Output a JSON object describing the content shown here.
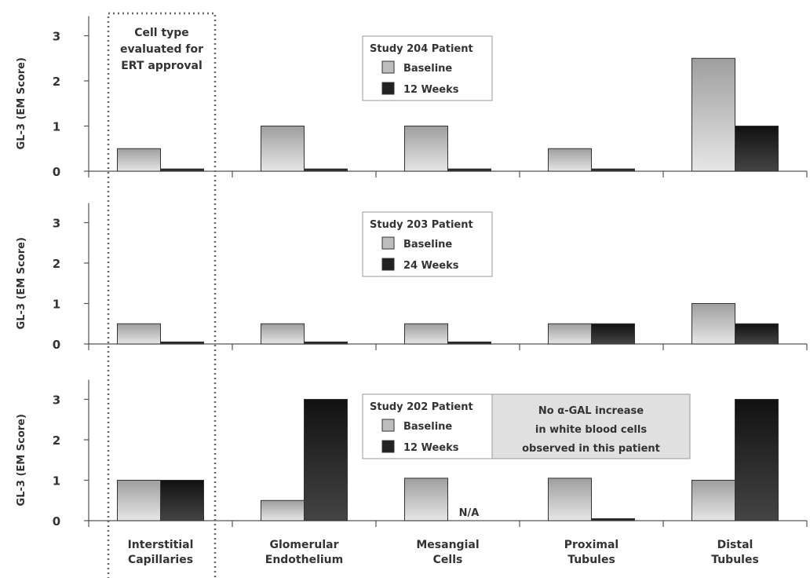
{
  "chart_data": {
    "type": "bar",
    "categories": [
      [
        "Interstitial",
        "Capillaries"
      ],
      [
        "Glomerular",
        "Endothelium"
      ],
      [
        "Mesangial",
        "Cells"
      ],
      [
        "Proximal",
        "Tubules"
      ],
      [
        "Distal",
        "Tubules"
      ]
    ],
    "ylabel": "GL-3 (EM Score)",
    "ylim": [
      0,
      3
    ],
    "yticks": [
      "0",
      "1",
      "2",
      "3"
    ],
    "grid": false,
    "highlight_note": [
      "Cell type",
      "evaluated for",
      "ERT approval"
    ],
    "panels": [
      {
        "legend_title": "Study 204 Patient",
        "series": [
          {
            "name": "Baseline",
            "values": [
              0.5,
              1.0,
              1.0,
              0.5,
              2.5
            ],
            "color": "#bdbdbd"
          },
          {
            "name": "12 Weeks",
            "values": [
              0.05,
              0.05,
              0.05,
              0.05,
              1.0
            ],
            "color": "#222222"
          }
        ]
      },
      {
        "legend_title": "Study 203 Patient",
        "series": [
          {
            "name": "Baseline",
            "values": [
              0.5,
              0.5,
              0.5,
              0.5,
              1.0
            ],
            "color": "#bdbdbd"
          },
          {
            "name": "24 Weeks",
            "values": [
              0.05,
              0.05,
              0.05,
              0.5,
              0.5
            ],
            "color": "#222222"
          }
        ]
      },
      {
        "legend_title": "Study 202 Patient",
        "series": [
          {
            "name": "Baseline",
            "values": [
              1.0,
              0.5,
              1.05,
              1.05,
              1.0
            ],
            "color": "#bdbdbd"
          },
          {
            "name": "12 Weeks",
            "values": [
              1.0,
              3.0,
              null,
              0.05,
              3.0
            ],
            "color": "#222222"
          }
        ],
        "na_label": "N/A",
        "annotation": [
          "No α-GAL increase",
          "in white blood cells",
          "observed in this patient"
        ]
      }
    ]
  }
}
